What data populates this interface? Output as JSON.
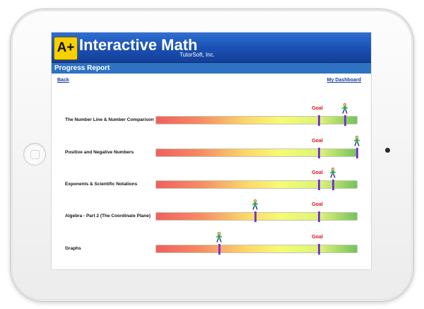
{
  "app": {
    "logo_text": "A+",
    "title": "Interactive Math",
    "subtitle": "TutorSoft, Inc."
  },
  "section": {
    "title": "Progress Report"
  },
  "nav": {
    "back": "Back",
    "dashboard": "My Dashboard"
  },
  "goal_label": "Goal",
  "colors": {
    "marker": "#7a36d6",
    "goal_text": "#e11111",
    "header": "#1a4fb3",
    "section_bar": "#2e72c4"
  },
  "topics": [
    {
      "label": "The Number Line & Number Comparison",
      "progress": 0.94,
      "goal": 0.81
    },
    {
      "label": "Positive and Negative Numbers",
      "progress": 1.0,
      "goal": 0.81
    },
    {
      "label": "Exponents & Scientific Notations",
      "progress": 0.88,
      "goal": 0.81
    },
    {
      "label": "Algebra - Part 2 (The Coordinate Plane)",
      "progress": 0.49,
      "goal": 0.81
    },
    {
      "label": "Graphs",
      "progress": 0.31,
      "goal": 0.81
    }
  ]
}
